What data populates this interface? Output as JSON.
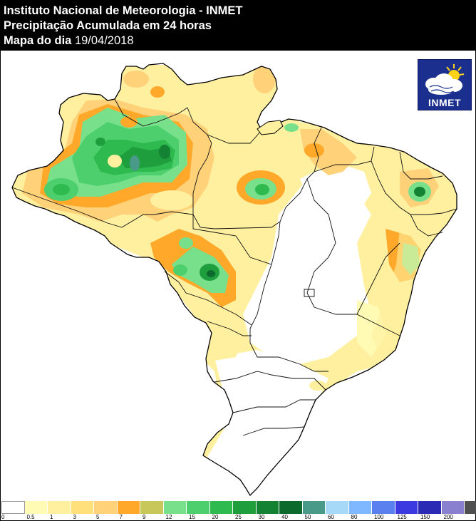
{
  "header": {
    "line1": "Instituto Nacional de Meteorologia - INMET",
    "line2": "Precipitação Acumulada em 24 horas",
    "line3_label": "Mapa do dia",
    "line3_date": "19/04/2018"
  },
  "logo": {
    "text": "INMET",
    "icon": "sun-cloud-logo-icon"
  },
  "legend": {
    "ticks": [
      "0",
      "0.5",
      "1",
      "3",
      "5",
      "7",
      "9",
      "12",
      "15",
      "20",
      "25",
      "30",
      "40",
      "50",
      "60",
      "80",
      "100",
      "125",
      "150",
      "200"
    ],
    "colors": [
      "#ffffff",
      "#fffab4",
      "#fff0a0",
      "#ffe07a",
      "#ffd27a",
      "#ffa82a",
      "#c8c85a",
      "#78e08a",
      "#4ecf6e",
      "#2eba4e",
      "#1e9e3c",
      "#138232",
      "#0c6a2c",
      "#4a9a8a",
      "#a6d8f8",
      "#7fb8ff",
      "#5a80f0",
      "#3a3ae0",
      "#2a2ab4",
      "#8a80d0",
      "#505050"
    ]
  }
}
